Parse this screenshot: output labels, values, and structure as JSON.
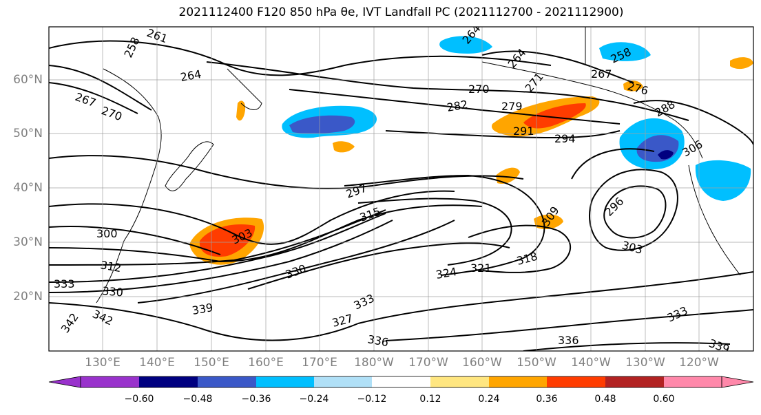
{
  "title": "2021112400 F120 850 hPa θe, IVT Landfall PC (2021112700 - 2021112900)",
  "lat_labels": [
    "60°N",
    "50°N",
    "40°N",
    "30°N",
    "20°N"
  ],
  "lon_labels": [
    "130°E",
    "140°E",
    "150°E",
    "160°E",
    "170°E",
    "180°W",
    "170°W",
    "160°W",
    "150°W",
    "140°W",
    "130°W",
    "120°W"
  ],
  "contour_labels": [
    "261",
    "258",
    "264",
    "267",
    "270",
    "270",
    "279",
    "282",
    "276",
    "288",
    "264",
    "267",
    "258",
    "291",
    "294",
    "297",
    "306",
    "296",
    "303",
    "309",
    "315",
    "300",
    "303",
    "312",
    "321",
    "318",
    "324",
    "330",
    "330",
    "333",
    "339",
    "336",
    "336",
    "333",
    "339",
    "342",
    "342",
    "327",
    "333",
    "264",
    "271"
  ],
  "colorbar": {
    "ticks": [
      "−0.60",
      "−0.48",
      "−0.36",
      "−0.24",
      "−0.12",
      "0.12",
      "0.24",
      "0.36",
      "0.48",
      "0.60"
    ],
    "colors": [
      "#9932cc",
      "#000080",
      "#3a58c8",
      "#00bfff",
      "#b0e0f7",
      "#ffffff",
      "#ffe680",
      "#ffa500",
      "#ff3c00",
      "#b22222",
      "#ff88aa"
    ]
  },
  "colors": {
    "positive_strong": "#ff3c00",
    "positive_mid": "#ffa500",
    "positive_weak": "#ffe680",
    "negative_weak": "#00bfff",
    "negative_mid": "#3a58c8",
    "negative_strong": "#000080",
    "grid": "#a0a0a0"
  }
}
